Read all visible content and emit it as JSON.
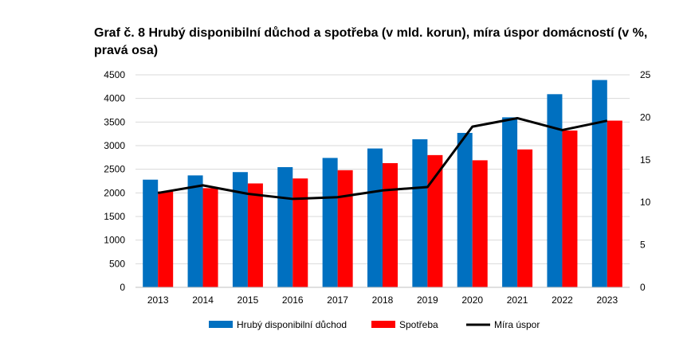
{
  "title": "Graf č. 8 Hrubý disponibilní důchod a spotřeba (v mld. korun), míra úspor domácností (v %, pravá osa)",
  "chart_data": {
    "type": "bar",
    "categories": [
      "2013",
      "2014",
      "2015",
      "2016",
      "2017",
      "2018",
      "2019",
      "2020",
      "2021",
      "2022",
      "2023"
    ],
    "series": [
      {
        "name": "Hrubý disponibilní důchod",
        "kind": "bar",
        "axis": "left",
        "color": "#0070C0",
        "values": [
          2280,
          2370,
          2440,
          2545,
          2740,
          2940,
          3135,
          3270,
          3600,
          4090,
          4390
        ]
      },
      {
        "name": "Spotřeba",
        "kind": "bar",
        "axis": "left",
        "color": "#FF0000",
        "values": [
          2030,
          2100,
          2200,
          2305,
          2480,
          2630,
          2800,
          2690,
          2920,
          3320,
          3530
        ]
      },
      {
        "name": "Míra úspor",
        "kind": "line",
        "axis": "right",
        "color": "#000000",
        "values": [
          11.1,
          12.0,
          11.0,
          10.4,
          10.6,
          11.4,
          11.8,
          18.9,
          19.9,
          18.5,
          19.6
        ]
      }
    ],
    "y_left": {
      "min": 0,
      "max": 4500,
      "step": 500,
      "ticks": [
        "0",
        "500",
        "1000",
        "1500",
        "2000",
        "2500",
        "3000",
        "3500",
        "4000",
        "4500"
      ]
    },
    "y_right": {
      "min": 0,
      "max": 25,
      "step": 5,
      "ticks": [
        "0",
        "5",
        "10",
        "15",
        "20",
        "25"
      ]
    },
    "grid": true,
    "legend_position": "bottom"
  }
}
